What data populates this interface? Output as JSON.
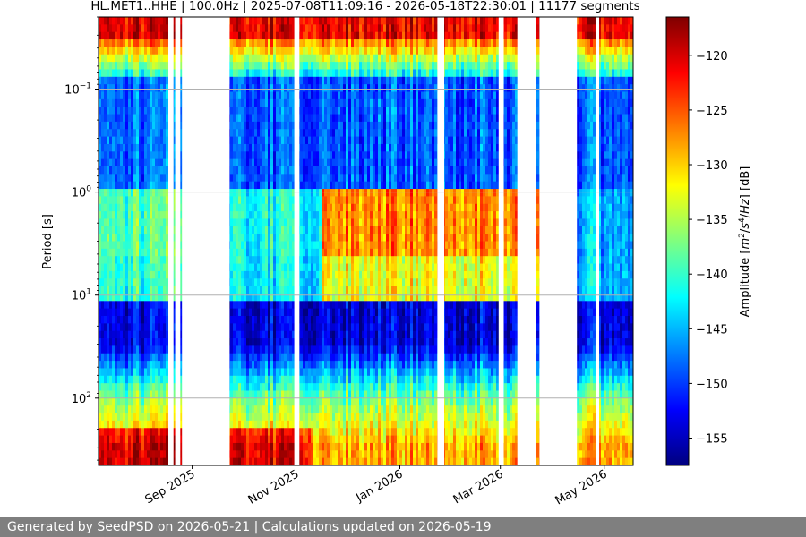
{
  "chart_data": {
    "type": "heatmap",
    "title": "HL.MET1..HHE | 100.0Hz | 2025-07-08T11:09:16 - 2026-05-18T22:30:01 | 11177 segments",
    "xlabel": "",
    "ylabel": "Period [s]",
    "y_scale": "log",
    "y_inverted": true,
    "y_ticks": [
      {
        "value": 0.1,
        "base": "10",
        "exp": "−1"
      },
      {
        "value": 1,
        "base": "10",
        "exp": "0"
      },
      {
        "value": 10,
        "base": "10",
        "exp": "1"
      },
      {
        "value": 100,
        "base": "10",
        "exp": "2"
      }
    ],
    "ylim": [
      0.02,
      450
    ],
    "xlim": [
      "2025-07-08",
      "2026-05-18"
    ],
    "x_ticks": [
      {
        "label": "Sep 2025",
        "date": "2025-09-01"
      },
      {
        "label": "Nov 2025",
        "date": "2025-11-01"
      },
      {
        "label": "Jan 2026",
        "date": "2026-01-01"
      },
      {
        "label": "Mar 2026",
        "date": "2026-03-01"
      },
      {
        "label": "May 2026",
        "date": "2026-05-01"
      }
    ],
    "grid": true,
    "colorbar": {
      "label_parts": [
        "Amplitude [",
        "m",
        "2",
        "/",
        "s",
        "4",
        "/",
        "Hz",
        "] [dB]"
      ],
      "ticks": [
        -120,
        -125,
        -130,
        -135,
        -140,
        -145,
        -150,
        -155
      ],
      "range": [
        -157.5,
        -116.5
      ],
      "colormap": "jet"
    },
    "data_gaps": [
      [
        "2025-08-18",
        "2025-08-21"
      ],
      [
        "2025-08-22",
        "2025-08-25"
      ],
      [
        "2025-08-26",
        "2025-09-23"
      ],
      [
        "2025-10-31",
        "2025-11-03"
      ],
      [
        "2026-01-23",
        "2026-01-27"
      ],
      [
        "2026-02-28",
        "2026-03-03"
      ],
      [
        "2026-03-11",
        "2026-03-22"
      ],
      [
        "2026-03-24",
        "2026-04-15"
      ],
      [
        "2026-04-26",
        "2026-04-28"
      ]
    ],
    "colors": {
      "grid": "#b0b0b0",
      "gap": "#ffffff",
      "jet": [
        "#00007f",
        "#0000ff",
        "#007fff",
        "#00ffff",
        "#7fff7f",
        "#ffff00",
        "#ff7f00",
        "#ff0000",
        "#7f0000"
      ]
    }
  },
  "footer": {
    "text": "Generated by SeedPSD on 2026-05-21 | Calculations updated on 2026-05-19"
  }
}
